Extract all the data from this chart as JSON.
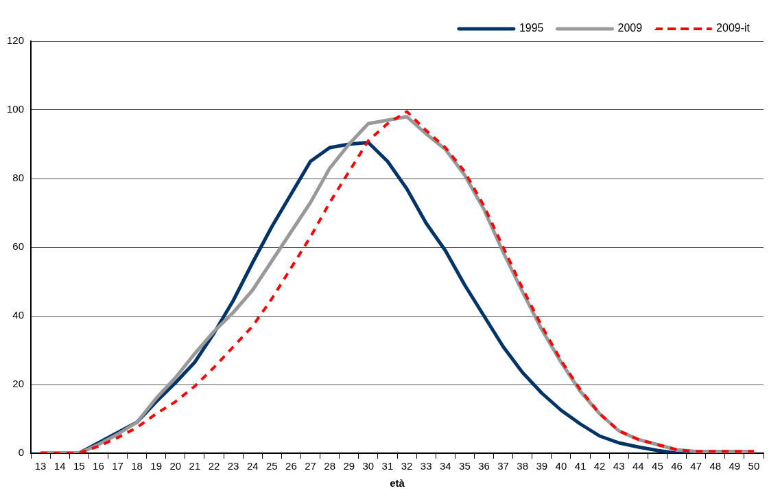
{
  "chart_data": {
    "type": "line",
    "xlabel": "età",
    "categories": [
      "13",
      "14",
      "15",
      "16",
      "17",
      "18",
      "19",
      "20",
      "21",
      "22",
      "23",
      "24",
      "25",
      "26",
      "27",
      "28",
      "29",
      "30",
      "31",
      "32",
      "33",
      "34",
      "35",
      "36",
      "37",
      "38",
      "39",
      "40",
      "41",
      "42",
      "43",
      "44",
      "45",
      "46",
      "47",
      "48",
      "49",
      "50"
    ],
    "series": [
      {
        "name": "1995",
        "color": "#003366",
        "line_style": "solid",
        "values": [
          0,
          0,
          0,
          3,
          6,
          9,
          15,
          20.5,
          26.5,
          35,
          44.5,
          55.5,
          66,
          75.5,
          85,
          89,
          90,
          90.5,
          85,
          77,
          67,
          59,
          49,
          40,
          31,
          23.5,
          17.5,
          12.5,
          8.5,
          5,
          3,
          1.8,
          0.8,
          0,
          0,
          0,
          null,
          null
        ]
      },
      {
        "name": "2009",
        "color": "#999999",
        "line_style": "solid",
        "values": [
          0,
          0,
          0,
          2.5,
          5.5,
          9,
          16,
          22,
          29,
          35.5,
          41,
          47.5,
          56,
          64.5,
          73,
          83,
          90,
          96,
          97,
          98,
          93,
          88.5,
          81,
          71,
          58.5,
          47,
          36,
          26.5,
          18,
          11.5,
          6.5,
          4,
          2.5,
          1,
          0.5,
          0.5,
          0.5,
          0.5
        ]
      },
      {
        "name": "2009-it",
        "color": "#ff0000",
        "line_style": "dashed",
        "values": [
          0,
          0,
          0,
          2,
          4.5,
          7.5,
          11.5,
          15,
          19.5,
          25,
          31,
          37,
          45,
          54,
          63,
          73,
          82,
          91,
          96,
          99.5,
          94,
          89,
          82,
          72,
          60,
          48,
          37,
          27,
          18.5,
          11.5,
          6.5,
          4,
          2.5,
          1,
          0.5,
          0.5,
          0.5,
          0.5
        ]
      }
    ],
    "ylim": [
      0,
      120
    ],
    "yticks": [
      0,
      20,
      40,
      60,
      80,
      100,
      120
    ],
    "grid": "y",
    "legend": "top right",
    "marker": "none"
  }
}
